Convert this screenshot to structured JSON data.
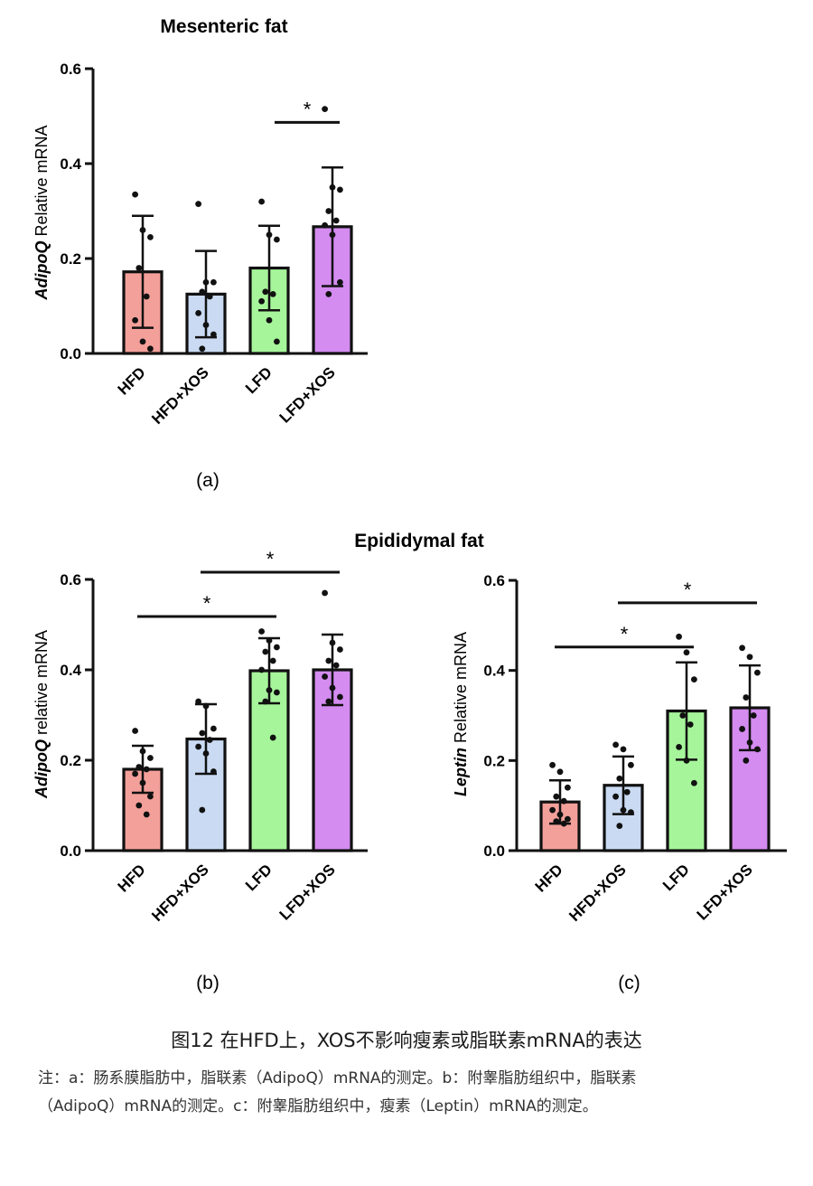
{
  "headings": {
    "top": "Mesenteric fat",
    "bottom": "Epididymal fat"
  },
  "chart_data": [
    {
      "type": "bar",
      "panel": "(a)",
      "title": "Mesenteric fat",
      "ylabel_gene": "AdipoQ",
      "ylabel_rest": " Relative mRNA",
      "ylim": [
        0,
        0.6
      ],
      "yticks": [
        "0.0",
        "0.2",
        "0.4",
        "0.6"
      ],
      "categories": [
        "HFD",
        "HFD+XOS",
        "LFD",
        "LFD+XOS"
      ],
      "colors": [
        "#f4a09a",
        "#c9daf2",
        "#a6f59a",
        "#d48cf0"
      ],
      "values": [
        0.172,
        0.125,
        0.18,
        0.267
      ],
      "sd": [
        0.118,
        0.091,
        0.089,
        0.125
      ],
      "points": [
        [
          0.335,
          0.26,
          0.245,
          0.18,
          0.12,
          0.07,
          0.025,
          0.01
        ],
        [
          0.315,
          0.15,
          0.15,
          0.13,
          0.12,
          0.085,
          0.06,
          0.04,
          0.01
        ],
        [
          0.32,
          0.25,
          0.24,
          0.13,
          0.125,
          0.11,
          0.07,
          0.025
        ],
        [
          0.515,
          0.35,
          0.345,
          0.3,
          0.28,
          0.27,
          0.25,
          0.15,
          0.125
        ]
      ],
      "significance": [
        {
          "from": 2,
          "to": 3,
          "label": "*"
        }
      ]
    },
    {
      "type": "bar",
      "panel": "(b)",
      "title": "",
      "ylabel_gene": "AdipoQ",
      "ylabel_rest": " relative mRNA",
      "ylim": [
        0,
        0.6
      ],
      "yticks": [
        "0.0",
        "0.2",
        "0.4",
        "0.6"
      ],
      "categories": [
        "HFD",
        "HFD+XOS",
        "LFD",
        "LFD+XOS"
      ],
      "colors": [
        "#f4a09a",
        "#c9daf2",
        "#a6f59a",
        "#d48cf0"
      ],
      "values": [
        0.18,
        0.247,
        0.398,
        0.4
      ],
      "sd": [
        0.052,
        0.077,
        0.072,
        0.078
      ],
      "points": [
        [
          0.265,
          0.22,
          0.205,
          0.185,
          0.18,
          0.17,
          0.15,
          0.12,
          0.1,
          0.08
        ],
        [
          0.33,
          0.32,
          0.27,
          0.26,
          0.245,
          0.23,
          0.215,
          0.175,
          0.09
        ],
        [
          0.485,
          0.465,
          0.45,
          0.44,
          0.42,
          0.4,
          0.355,
          0.35,
          0.33,
          0.25
        ],
        [
          0.57,
          0.46,
          0.445,
          0.42,
          0.41,
          0.385,
          0.36,
          0.34,
          0.33
        ]
      ],
      "significance": [
        {
          "from": 0,
          "to": 2,
          "label": "*",
          "y": 0.518
        },
        {
          "from": 1,
          "to": 3,
          "label": "*",
          "y": 0.616
        }
      ]
    },
    {
      "type": "bar",
      "panel": "(c)",
      "title": "",
      "ylabel_gene": "Leptin",
      "ylabel_rest": " Relative mRNA",
      "ylim": [
        0,
        0.6
      ],
      "yticks": [
        "0.0",
        "0.2",
        "0.4",
        "0.6"
      ],
      "categories": [
        "HFD",
        "HFD+XOS",
        "LFD",
        "LFD+XOS"
      ],
      "colors": [
        "#f4a09a",
        "#c9daf2",
        "#a6f59a",
        "#d48cf0"
      ],
      "values": [
        0.108,
        0.145,
        0.31,
        0.317
      ],
      "sd": [
        0.048,
        0.064,
        0.108,
        0.094
      ],
      "points": [
        [
          0.19,
          0.175,
          0.14,
          0.12,
          0.11,
          0.09,
          0.08,
          0.07,
          0.065,
          0.06
        ],
        [
          0.235,
          0.225,
          0.19,
          0.16,
          0.13,
          0.12,
          0.09,
          0.085,
          0.055
        ],
        [
          0.475,
          0.44,
          0.38,
          0.3,
          0.28,
          0.23,
          0.2,
          0.15
        ],
        [
          0.45,
          0.43,
          0.395,
          0.34,
          0.3,
          0.27,
          0.24,
          0.225,
          0.2
        ]
      ],
      "significance": [
        {
          "from": 0,
          "to": 2,
          "label": "*",
          "y": 0.452
        },
        {
          "from": 1,
          "to": 3,
          "label": "*",
          "y": 0.55
        }
      ]
    }
  ],
  "caption": {
    "title": "图12 在HFD上，XOS不影响瘦素或脂联素mRNA的表达",
    "note_line1": "注：a：肠系膜脂肪中，脂联素（AdipoQ）mRNA的测定。b：附睾脂肪组织中，脂联素",
    "note_line2": "（AdipoQ）mRNA的测定。c：附睾脂肪组织中，瘦素（Leptin）mRNA的测定。"
  }
}
